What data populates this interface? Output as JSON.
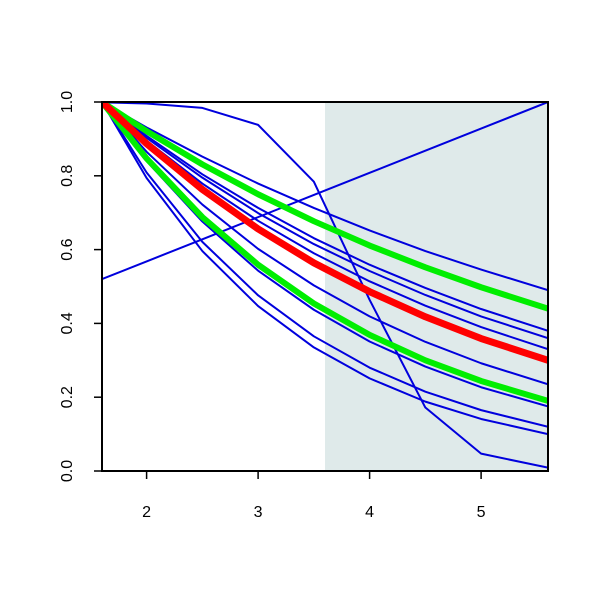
{
  "chart_data": {
    "type": "line",
    "x": [
      1.6,
      2,
      2.5,
      3,
      3.5,
      4,
      4.5,
      5,
      5.6
    ],
    "xlim": [
      1.6,
      5.6
    ],
    "xticks": [
      2,
      3,
      4,
      5
    ],
    "ylim": [
      0,
      1
    ],
    "yticks": [
      {
        "value": 0,
        "label": "0.0"
      },
      0.2,
      0.4,
      0.6,
      0.8,
      {
        "value": 1,
        "label": "1.0"
      }
    ],
    "shaded_xrange": [
      3.6,
      5.6
    ],
    "shaded_color": "#dfeaea",
    "series": [
      {
        "color": "#0000dd",
        "width": 2,
        "values": [
          0.52,
          0.568,
          0.628,
          0.688,
          0.748,
          0.808,
          0.868,
          0.928,
          1.0
        ]
      },
      {
        "color": "#0000dd",
        "width": 2,
        "values": [
          0.999,
          0.996,
          0.984,
          0.938,
          0.784,
          0.464,
          0.172,
          0.047,
          0.009
        ]
      },
      {
        "color": "#0000dd",
        "width": 2,
        "values": [
          1,
          0.931,
          0.852,
          0.779,
          0.713,
          0.652,
          0.596,
          0.546,
          0.49
        ]
      },
      {
        "color": "#0000dd",
        "width": 2,
        "values": [
          1,
          0.908,
          0.804,
          0.713,
          0.631,
          0.559,
          0.496,
          0.439,
          0.38
        ]
      },
      {
        "color": "#0000dd",
        "width": 2,
        "values": [
          1,
          0.903,
          0.795,
          0.699,
          0.615,
          0.542,
          0.477,
          0.419,
          0.36
        ]
      },
      {
        "color": "#0000dd",
        "width": 2,
        "values": [
          1,
          0.895,
          0.779,
          0.678,
          0.59,
          0.514,
          0.448,
          0.39,
          0.33
        ]
      },
      {
        "color": "#0000dd",
        "width": 2,
        "values": [
          1,
          0.865,
          0.722,
          0.602,
          0.503,
          0.419,
          0.35,
          0.292,
          0.235
        ]
      },
      {
        "color": "#0000dd",
        "width": 2,
        "values": [
          1,
          0.84,
          0.676,
          0.543,
          0.437,
          0.351,
          0.283,
          0.227,
          0.175
        ]
      },
      {
        "color": "#0000dd",
        "width": 2,
        "values": [
          1,
          0.809,
          0.621,
          0.476,
          0.365,
          0.28,
          0.215,
          0.165,
          0.12
        ]
      },
      {
        "color": "#0000dd",
        "width": 2,
        "values": [
          1,
          0.794,
          0.596,
          0.447,
          0.335,
          0.251,
          0.188,
          0.141,
          0.1
        ]
      },
      {
        "color": "#00ee00",
        "width": 6,
        "values": [
          1,
          0.921,
          0.831,
          0.75,
          0.677,
          0.611,
          0.552,
          0.498,
          0.44
        ]
      },
      {
        "color": "#00ee00",
        "width": 6,
        "values": [
          1,
          0.847,
          0.688,
          0.559,
          0.454,
          0.369,
          0.3,
          0.244,
          0.19
        ]
      },
      {
        "color": "#ff0000",
        "width": 7,
        "values": [
          1,
          0.887,
          0.763,
          0.656,
          0.564,
          0.486,
          0.418,
          0.359,
          0.3
        ]
      }
    ]
  }
}
